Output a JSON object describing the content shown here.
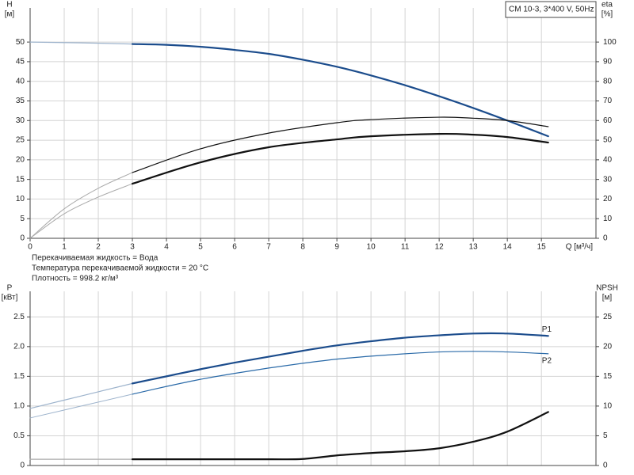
{
  "chart_data": [
    {
      "type": "line",
      "title": "CM 10-3, 3*400 V, 50Hz",
      "xlabel": "Q [м³/ч]",
      "ylabel": "H",
      "yunit": "[м]",
      "y2label": "eta",
      "y2unit": "[%]",
      "xlim": [
        0,
        16.6
      ],
      "xticks": [
        0,
        1,
        2,
        3,
        4,
        5,
        6,
        7,
        8,
        9,
        10,
        11,
        12,
        13,
        14,
        15
      ],
      "show_xtick_labels": true,
      "ylim": [
        0,
        58.7
      ],
      "yticks": [
        0,
        5,
        10,
        15,
        20,
        25,
        30,
        35,
        40,
        45,
        50
      ],
      "y2lim": [
        0,
        117.4
      ],
      "y2ticks": [
        0,
        10,
        20,
        30,
        40,
        50,
        60,
        70,
        80,
        90,
        100
      ],
      "grid": true,
      "annotations": [
        "Перекачиваемая жидкость = Вода",
        "Температура перекачиваемой жидкости = 20 °C",
        "Плотность = 998.2 кг/м³"
      ],
      "series": [
        {
          "color": "#9db3cc",
          "width": 1.2,
          "axis": "y",
          "x": [
            0,
            1.5,
            3
          ],
          "values": [
            50,
            49.8,
            49.5
          ]
        },
        {
          "color": "#1b4c8c",
          "width": 2.2,
          "axis": "y",
          "x": [
            3,
            4,
            5,
            6,
            7,
            8,
            9,
            10,
            11,
            12,
            13,
            14,
            15.2
          ],
          "values": [
            49.5,
            49.3,
            48.8,
            48,
            47,
            45.5,
            43.7,
            41.5,
            39,
            36.2,
            33.2,
            30,
            26
          ]
        },
        {
          "color": "#aaaaaa",
          "width": 1,
          "axis": "y2",
          "x": [
            0,
            1,
            2,
            3
          ],
          "values": [
            0,
            15,
            25.5,
            33.5
          ]
        },
        {
          "color": "#111111",
          "width": 1.2,
          "axis": "y2",
          "x": [
            3,
            5,
            7,
            9,
            10,
            12,
            13,
            14,
            15.2
          ],
          "values": [
            33.5,
            45.6,
            53.6,
            58.9,
            60.5,
            61.7,
            61.2,
            60,
            56.9
          ]
        },
        {
          "color": "#aaaaaa",
          "width": 1,
          "axis": "y2",
          "x": [
            0,
            1,
            2,
            3
          ],
          "values": [
            0,
            12.5,
            21,
            27.8
          ]
        },
        {
          "color": "#111111",
          "width": 2.2,
          "axis": "y2",
          "x": [
            3,
            5,
            7,
            9,
            10,
            12,
            13,
            14,
            15.2
          ],
          "values": [
            27.8,
            38.7,
            46.4,
            50.4,
            52,
            53.2,
            52.8,
            51.6,
            48.8
          ]
        }
      ]
    },
    {
      "type": "line",
      "ylabel": "P",
      "yunit": "[кВт]",
      "y2label": "NPSH",
      "y2unit": "[м]",
      "xlim": [
        0,
        16.6
      ],
      "xticks": [
        0,
        1,
        2,
        3,
        4,
        5,
        6,
        7,
        8,
        9,
        10,
        11,
        12,
        13,
        14,
        15
      ],
      "show_xtick_labels": false,
      "ylim": [
        0,
        2.93
      ],
      "yticks": [
        0,
        0.5,
        {
          "value": 1,
          "label": "1.0"
        },
        1.5,
        {
          "value": 2,
          "label": "2.0"
        },
        2.5
      ],
      "y2lim": [
        0,
        29.3
      ],
      "y2ticks": [
        0,
        5,
        10,
        15,
        20,
        25
      ],
      "grid": true,
      "series": [
        {
          "color": "#9db3cc",
          "width": 1.2,
          "axis": "y",
          "x": [
            0,
            1.5,
            3
          ],
          "values": [
            0.96,
            1.17,
            1.38
          ]
        },
        {
          "name": "P1",
          "color": "#1b4c8c",
          "width": 2.2,
          "axis": "y",
          "x": [
            3,
            4,
            5,
            6,
            7,
            8,
            9,
            10,
            11,
            12,
            13,
            14,
            15.2
          ],
          "values": [
            1.38,
            1.5,
            1.62,
            1.73,
            1.83,
            1.93,
            2.02,
            2.09,
            2.15,
            2.19,
            2.22,
            2.22,
            2.18
          ]
        },
        {
          "color": "#9db3cc",
          "width": 1,
          "axis": "y",
          "x": [
            0,
            1.5,
            3
          ],
          "values": [
            0.8,
            1.0,
            1.2
          ]
        },
        {
          "name": "P2",
          "color": "#2a6aa8",
          "width": 1.2,
          "axis": "y",
          "x": [
            3,
            4,
            5,
            6,
            7,
            8,
            9,
            10,
            11,
            12,
            13,
            14,
            15.2
          ],
          "values": [
            1.2,
            1.33,
            1.45,
            1.55,
            1.64,
            1.72,
            1.79,
            1.84,
            1.88,
            1.91,
            1.92,
            1.91,
            1.88
          ]
        },
        {
          "color": "#aaaaaa",
          "width": 1.2,
          "axis": "y2",
          "x": [
            0,
            1.5,
            3
          ],
          "values": [
            1.05,
            1.05,
            1.05
          ]
        },
        {
          "color": "#111111",
          "width": 2.2,
          "axis": "y2",
          "x": [
            3,
            5,
            7,
            8,
            9,
            10,
            11,
            12,
            13,
            14,
            15.2
          ],
          "values": [
            1.05,
            1.05,
            1.05,
            1.1,
            1.7,
            2.1,
            2.4,
            2.9,
            4,
            5.7,
            9
          ]
        }
      ]
    }
  ]
}
